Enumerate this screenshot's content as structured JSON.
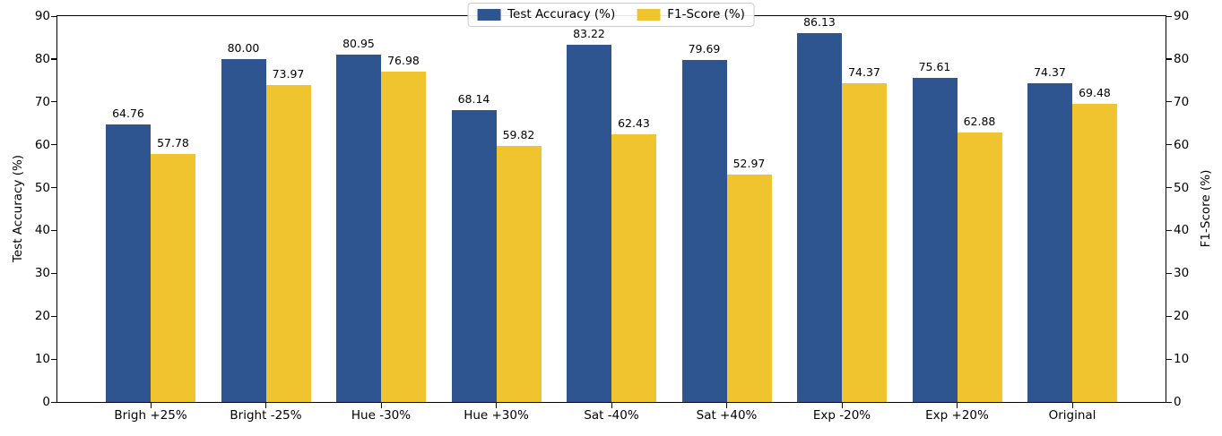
{
  "chart_data": {
    "type": "bar",
    "title": "",
    "categories": [
      "Brigh +25%",
      "Bright -25%",
      "Hue -30%",
      "Hue +30%",
      "Sat -40%",
      "Sat +40%",
      "Exp -20%",
      "Exp +20%",
      "Original"
    ],
    "series": [
      {
        "name": "Test Accuracy (%)",
        "axis": "left",
        "color": "#2f5591",
        "values": [
          64.76,
          80.0,
          80.95,
          68.14,
          83.22,
          79.69,
          86.13,
          75.61,
          74.37
        ]
      },
      {
        "name": "F1-Score (%)",
        "axis": "right",
        "color": "#f0c42f",
        "values": [
          57.78,
          73.97,
          76.98,
          59.82,
          62.43,
          52.97,
          74.37,
          62.88,
          69.48
        ]
      }
    ],
    "ylabel_left": "Test Accuracy (%)",
    "ylabel_right": "F1-Score (%)",
    "ylim": [
      0,
      90
    ],
    "yticks": [
      0,
      10,
      20,
      30,
      40,
      50,
      60,
      70,
      80,
      90
    ],
    "bar_value_labels": true,
    "value_label_decimals": 2,
    "grid": false,
    "legend": {
      "position": "top-center",
      "items": [
        "Test Accuracy (%)",
        "F1-Score (%)"
      ]
    }
  }
}
